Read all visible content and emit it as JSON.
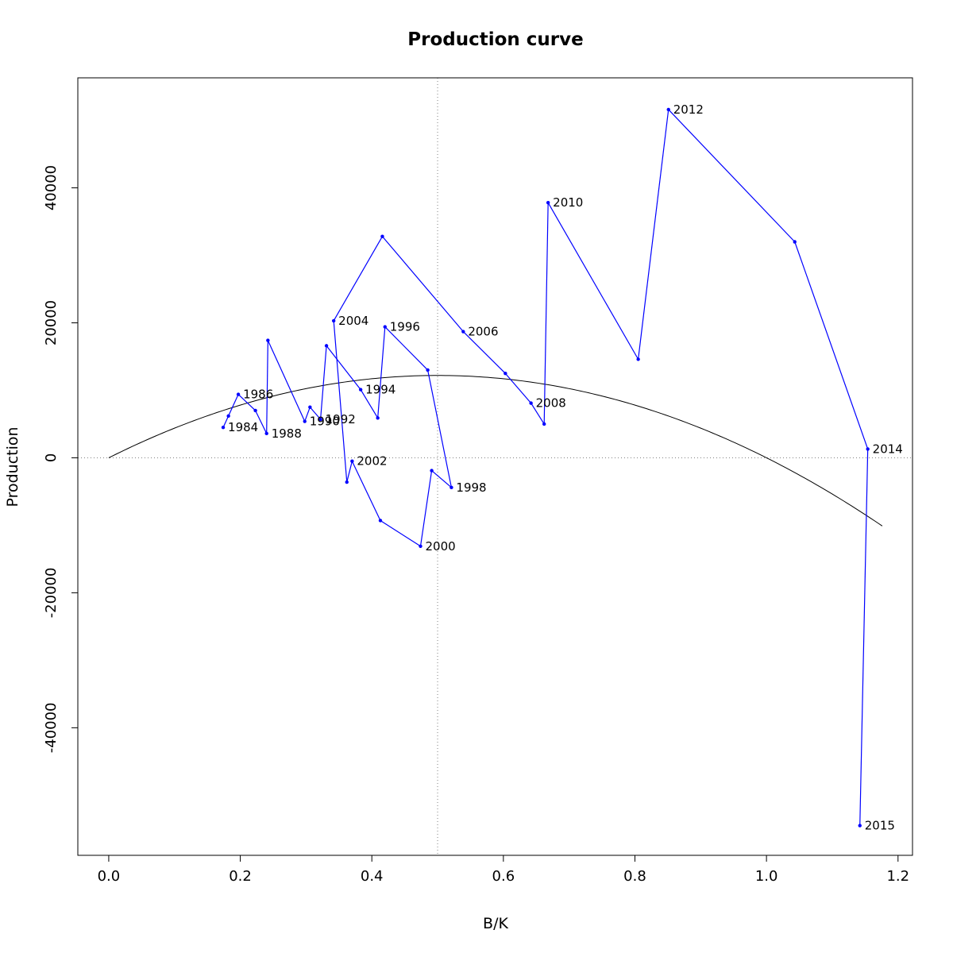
{
  "chart_data": {
    "type": "line",
    "title": "Production curve",
    "xlabel": "B/K",
    "ylabel": "Production",
    "xlim": [
      -0.047,
      1.222
    ],
    "ylim": [
      -58900,
      56300
    ],
    "x_ticks": [
      0.0,
      0.2,
      0.4,
      0.6,
      0.8,
      1.0,
      1.2
    ],
    "x_tick_labels": [
      "0.0",
      "0.2",
      "0.4",
      "0.6",
      "0.8",
      "1.0",
      "1.2"
    ],
    "y_ticks": [
      -40000,
      -20000,
      0,
      20000,
      40000
    ],
    "y_tick_labels": [
      "-40000",
      "-20000",
      "0",
      "20000",
      "40000"
    ],
    "reference_lines": {
      "vertical_x": 0.5,
      "horizontal_y": 0
    },
    "colors": {
      "series": "#0000ff",
      "curve": "#000000",
      "reference": "#808080"
    },
    "series": [
      {
        "points": [
          {
            "label": "1984",
            "x": 0.174,
            "y": 4500
          },
          {
            "label": "",
            "x": 0.182,
            "y": 6200
          },
          {
            "label": "1986",
            "x": 0.197,
            "y": 9400
          },
          {
            "label": "",
            "x": 0.223,
            "y": 7000
          },
          {
            "label": "1988",
            "x": 0.24,
            "y": 3600
          },
          {
            "label": "",
            "x": 0.242,
            "y": 17400
          },
          {
            "label": "1990",
            "x": 0.298,
            "y": 5400
          },
          {
            "label": "",
            "x": 0.306,
            "y": 7500
          },
          {
            "label": "1992",
            "x": 0.322,
            "y": 5700
          },
          {
            "label": "",
            "x": 0.331,
            "y": 16600
          },
          {
            "label": "1994",
            "x": 0.383,
            "y": 10100
          },
          {
            "label": "",
            "x": 0.409,
            "y": 5900
          },
          {
            "label": "1996",
            "x": 0.42,
            "y": 19400
          },
          {
            "label": "",
            "x": 0.485,
            "y": 13000
          },
          {
            "label": "1998",
            "x": 0.521,
            "y": -4400
          },
          {
            "label": "",
            "x": 0.491,
            "y": -1900
          },
          {
            "label": "2000",
            "x": 0.474,
            "y": -13100
          },
          {
            "label": "",
            "x": 0.413,
            "y": -9300
          },
          {
            "label": "2002",
            "x": 0.37,
            "y": -500
          },
          {
            "label": "",
            "x": 0.362,
            "y": -3600
          },
          {
            "label": "2004",
            "x": 0.342,
            "y": 20300
          },
          {
            "label": "",
            "x": 0.416,
            "y": 32800
          },
          {
            "label": "2006",
            "x": 0.539,
            "y": 18700
          },
          {
            "label": "",
            "x": 0.603,
            "y": 12500
          },
          {
            "label": "2008",
            "x": 0.642,
            "y": 8100
          },
          {
            "label": "",
            "x": 0.662,
            "y": 5000
          },
          {
            "label": "2010",
            "x": 0.668,
            "y": 37800
          },
          {
            "label": "",
            "x": 0.805,
            "y": 14600
          },
          {
            "label": "2012",
            "x": 0.851,
            "y": 51600
          },
          {
            "label": "",
            "x": 1.043,
            "y": 32000
          },
          {
            "label": "2014",
            "x": 1.154,
            "y": 1300
          },
          {
            "label": "2015",
            "x": 1.142,
            "y": -54500
          }
        ]
      }
    ],
    "curve": {
      "formula": "y = 4*MSY*x*(1-x)",
      "MSY": 12200,
      "x_range": [
        0,
        1.176
      ]
    }
  }
}
